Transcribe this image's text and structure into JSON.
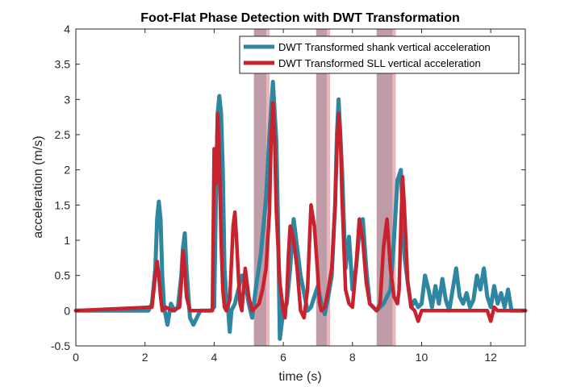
{
  "chart_data": {
    "type": "line",
    "title": "Foot-Flat Phase Detection with DWT Transformation",
    "xlabel": "time (s)",
    "ylabel": "acceleration (m/s)",
    "xlim": [
      0,
      13
    ],
    "ylim": [
      -0.5,
      4
    ],
    "xticks": [
      0,
      2,
      4,
      6,
      8,
      10,
      12
    ],
    "yticks": [
      -0.5,
      0,
      0.5,
      1,
      1.5,
      2,
      2.5,
      3,
      3.5,
      4
    ],
    "ytick_labels": [
      "-0.5",
      "0",
      "0.5",
      "1",
      "1.5",
      "2",
      "2.5",
      "3",
      "3.5",
      "4"
    ],
    "grid": false,
    "legend_position": "top-right",
    "foot_flat_phases": [
      {
        "start": 5.15,
        "end": 5.6
      },
      {
        "start": 6.95,
        "end": 7.35
      },
      {
        "start": 8.7,
        "end": 9.25
      }
    ],
    "colors": {
      "shank": "#2e86a0",
      "sll": "#c8222e",
      "phase_fill": "#8b4a5e",
      "phase_edge": "#f2b8bf"
    },
    "series": [
      {
        "name": "DWT Transformed shank vertical acceleration",
        "x": [
          0,
          2.1,
          2.2,
          2.3,
          2.35,
          2.4,
          2.45,
          2.5,
          2.55,
          2.65,
          2.75,
          2.85,
          2.95,
          3.05,
          3.1,
          3.15,
          3.2,
          3.3,
          3.4,
          3.6,
          3.9,
          4.0,
          4.05,
          4.1,
          4.15,
          4.2,
          4.25,
          4.3,
          4.35,
          4.4,
          4.45,
          4.5,
          4.6,
          4.7,
          4.8,
          4.9,
          5.0,
          5.1,
          5.2,
          5.35,
          5.5,
          5.6,
          5.7,
          5.8,
          5.85,
          5.9,
          6.0,
          6.1,
          6.2,
          6.3,
          6.5,
          6.7,
          6.8,
          6.9,
          7.0,
          7.1,
          7.2,
          7.3,
          7.4,
          7.5,
          7.55,
          7.6,
          7.7,
          7.8,
          7.9,
          8.0,
          8.1,
          8.2,
          8.3,
          8.4,
          8.5,
          8.6,
          8.7,
          8.9,
          9.1,
          9.2,
          9.3,
          9.4,
          9.5,
          9.6,
          9.7,
          9.8,
          9.9,
          10.0,
          10.1,
          10.2,
          10.3,
          10.4,
          10.5,
          10.6,
          10.7,
          10.8,
          10.9,
          11.0,
          11.1,
          11.2,
          11.3,
          11.4,
          11.5,
          11.6,
          11.7,
          11.8,
          11.9,
          12.0,
          12.1,
          12.2,
          12.3,
          12.4,
          12.5,
          12.6,
          12.7,
          13.0
        ],
        "values": [
          0,
          0,
          0.1,
          0.6,
          1.3,
          1.55,
          1.3,
          0.5,
          0.05,
          -0.2,
          0.1,
          0.0,
          0.05,
          0.5,
          0.9,
          1.1,
          0.6,
          -0.1,
          -0.2,
          0.0,
          0.0,
          0.05,
          1.5,
          2.8,
          3.05,
          2.8,
          2.0,
          0.6,
          0.2,
          0.05,
          -0.3,
          0.0,
          0.1,
          0.3,
          0.5,
          0.4,
          0.1,
          -0.1,
          0.3,
          0.8,
          1.6,
          2.5,
          3.25,
          2.4,
          1.2,
          -0.4,
          0.0,
          0.1,
          0.6,
          1.3,
          0.5,
          0.0,
          0.05,
          0.2,
          0.35,
          0.1,
          -0.05,
          0.2,
          0.5,
          1.5,
          2.5,
          3.0,
          2.0,
          0.6,
          1.05,
          0.3,
          0.6,
          1.1,
          1.3,
          0.6,
          0.1,
          0.05,
          0.0,
          0.1,
          0.3,
          1.0,
          1.85,
          2.0,
          0.8,
          0.4,
          0.05,
          0.15,
          0.05,
          0.1,
          0.5,
          0.3,
          0.05,
          0.35,
          0.1,
          0.45,
          0.15,
          0.0,
          0.3,
          0.6,
          0.2,
          0.1,
          0.25,
          0.05,
          0.15,
          0.5,
          0.3,
          0.6,
          0.2,
          0.05,
          0.35,
          0.1,
          0.25,
          0.05,
          0.3,
          0.0,
          0.0,
          0.0
        ]
      },
      {
        "name": "DWT Transformed SLL vertical acceleration",
        "x": [
          0,
          2.2,
          2.3,
          2.35,
          2.4,
          2.45,
          2.5,
          2.6,
          2.8,
          3.0,
          3.05,
          3.1,
          3.15,
          3.2,
          3.3,
          3.4,
          3.6,
          3.95,
          4.0,
          4.05,
          4.1,
          4.15,
          4.2,
          4.25,
          4.3,
          4.35,
          4.45,
          4.55,
          4.6,
          4.65,
          4.7,
          4.75,
          4.8,
          4.9,
          5.0,
          5.1,
          5.2,
          5.3,
          5.4,
          5.5,
          5.6,
          5.65,
          5.7,
          5.75,
          5.8,
          5.9,
          6.0,
          6.05,
          6.1,
          6.15,
          6.2,
          6.3,
          6.4,
          6.5,
          6.6,
          6.7,
          6.8,
          6.9,
          7.0,
          7.05,
          7.1,
          7.2,
          7.3,
          7.4,
          7.5,
          7.55,
          7.6,
          7.65,
          7.7,
          7.8,
          7.9,
          8.0,
          8.1,
          8.2,
          8.3,
          8.4,
          8.5,
          8.6,
          8.7,
          8.8,
          8.9,
          9.0,
          9.1,
          9.2,
          9.3,
          9.35,
          9.4,
          9.45,
          9.5,
          9.6,
          9.7,
          9.8,
          9.9,
          10.0,
          10.5,
          11.0,
          11.5,
          11.9,
          12.0,
          12.1,
          12.2,
          12.5,
          12.8,
          13.0
        ],
        "values": [
          0,
          0.05,
          0.5,
          0.7,
          0.5,
          0.2,
          0.0,
          0.05,
          0.0,
          0.05,
          0.4,
          0.85,
          0.6,
          0.2,
          0.0,
          0.0,
          0.0,
          0.0,
          2.3,
          1.8,
          2.8,
          2.2,
          1.0,
          0.3,
          0.05,
          0.0,
          0.15,
          1.2,
          1.4,
          1.0,
          0.5,
          0.1,
          0.0,
          0.6,
          0.2,
          0.0,
          0.05,
          0.1,
          0.3,
          0.6,
          1.4,
          2.5,
          2.95,
          2.4,
          1.4,
          0.4,
          0.0,
          -0.1,
          0.2,
          0.8,
          1.2,
          1.0,
          0.6,
          0.0,
          -0.1,
          0.3,
          1.5,
          1.2,
          0.5,
          0.1,
          0.0,
          0.05,
          0.3,
          0.6,
          1.5,
          2.3,
          2.8,
          2.5,
          1.6,
          0.3,
          0.1,
          0.05,
          0.6,
          1.3,
          1.0,
          0.4,
          0.1,
          0.05,
          0.0,
          0.1,
          0.9,
          1.3,
          0.6,
          0.2,
          0.1,
          0.3,
          1.2,
          1.9,
          1.5,
          0.4,
          0.05,
          0.0,
          -0.15,
          0.0,
          0.0,
          0.0,
          0.0,
          0.0,
          -0.15,
          0.05,
          0.0,
          0.0,
          0.0,
          0.0
        ]
      }
    ]
  }
}
